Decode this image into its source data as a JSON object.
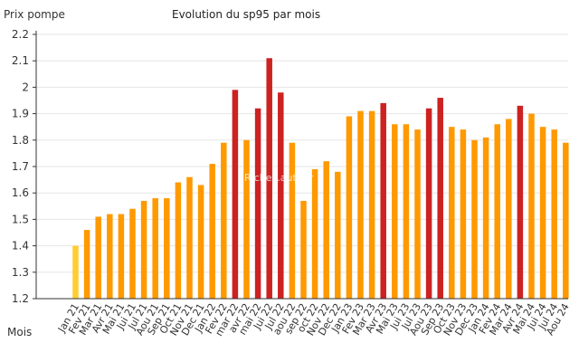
{
  "header": {
    "y_axis_title": "Prix pompe",
    "title": "Evolution du sp95 par mois",
    "x_axis_title": "Mois"
  },
  "watermark": "Riches.auto.fr",
  "colors": {
    "normal": "#ff9900",
    "highlight": "#cc2222",
    "first": "#ffcc33",
    "grid": "#e6e6e6",
    "axis": "#333333"
  },
  "chart_data": {
    "type": "bar",
    "title": "Evolution du sp95 par mois",
    "ylabel": "Prix pompe",
    "xlabel": "Mois",
    "ylim": [
      1.2,
      2.2
    ],
    "y_ticks": [
      "1.2",
      "1.3",
      "1.4",
      "1.5",
      "1.6",
      "1.7",
      "1.8",
      "1.9",
      "2",
      "2.1",
      "2.2"
    ],
    "grid": true,
    "categories": [
      "Jan 21",
      "Fev 21",
      "Mar 21",
      "Avr 21",
      "Mai 21",
      "Jui 21",
      "Jul 21",
      "Aou 21",
      "Sep 21",
      "Oct 21",
      "Nov 21",
      "Dec 21",
      "Jan 22",
      "Fev 22",
      "mar 22",
      "avr 22",
      "mai 22",
      "Jui 22",
      "Jul 22",
      "aou 22",
      "sep 22",
      "oct 22",
      "Nov 22",
      "Dec 22",
      "Jan 23",
      "Fev 23",
      "Mar 23",
      "Avr 23",
      "Mai 23",
      "Jui 23",
      "Jul 23",
      "Aou 23",
      "Sep 23",
      "Oct 23",
      "Nov 23",
      "Dec 23",
      "Jan 24",
      "Fev 24",
      "Mar 24",
      "Avr 24",
      "Mai 24",
      "Jui 24",
      "Jul 24",
      "Aou 24"
    ],
    "values": [
      1.4,
      1.46,
      1.51,
      1.52,
      1.52,
      1.54,
      1.57,
      1.58,
      1.58,
      1.64,
      1.66,
      1.63,
      1.71,
      1.79,
      1.99,
      1.8,
      1.92,
      2.11,
      1.98,
      1.79,
      1.57,
      1.69,
      1.72,
      1.68,
      1.89,
      1.91,
      1.91,
      1.94,
      1.86,
      1.86,
      1.84,
      1.92,
      1.96,
      1.85,
      1.84,
      1.8,
      1.81,
      1.86,
      1.88,
      1.93,
      1.9,
      1.85,
      1.84,
      1.79
    ],
    "bar_roles": [
      "first",
      "normal",
      "normal",
      "normal",
      "normal",
      "normal",
      "normal",
      "normal",
      "normal",
      "normal",
      "normal",
      "normal",
      "normal",
      "normal",
      "highlight",
      "normal",
      "highlight",
      "highlight",
      "highlight",
      "normal",
      "normal",
      "normal",
      "normal",
      "normal",
      "normal",
      "normal",
      "normal",
      "highlight",
      "normal",
      "normal",
      "normal",
      "highlight",
      "highlight",
      "normal",
      "normal",
      "normal",
      "normal",
      "normal",
      "normal",
      "highlight",
      "normal",
      "normal",
      "normal",
      "normal"
    ]
  }
}
